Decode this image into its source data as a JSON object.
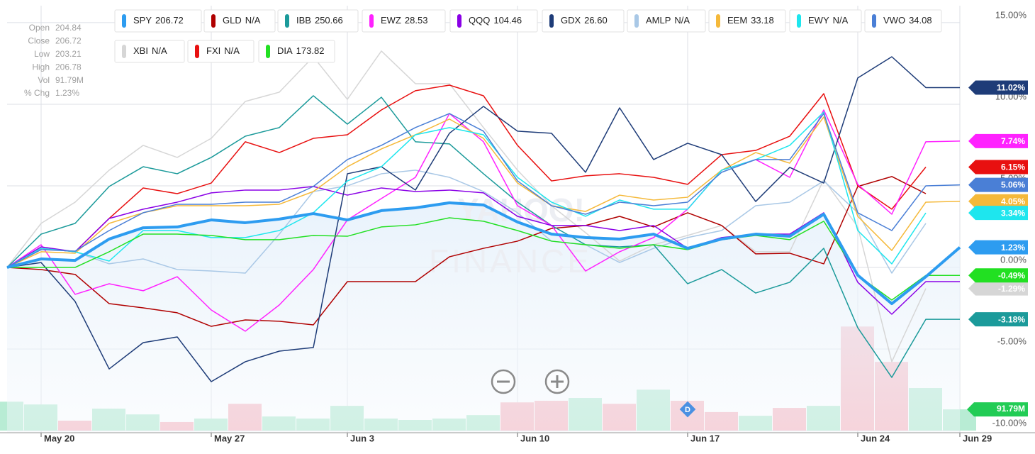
{
  "chart_data": {
    "type": "line",
    "info": [
      {
        "label": "Open",
        "value": "204.84"
      },
      {
        "label": "Close",
        "value": "206.72"
      },
      {
        "label": "Low",
        "value": "203.21"
      },
      {
        "label": "High",
        "value": "206.78"
      },
      {
        "label": "Vol",
        "value": "91.79M"
      },
      {
        "label": "% Chg",
        "value": "1.23%"
      }
    ],
    "watermark": [
      "YAHOO!",
      "FINANCE"
    ],
    "event_marker": {
      "label": "D",
      "x": 20
    },
    "x": [
      0,
      1,
      2,
      3,
      4,
      5,
      6,
      7,
      8,
      9,
      10,
      11,
      12,
      13,
      14,
      15,
      16,
      17,
      18,
      19,
      20,
      21,
      22,
      23,
      24,
      25,
      26,
      27,
      28
    ],
    "xlim": [
      0,
      28
    ],
    "xticks": [
      {
        "value": 1,
        "label": "May 20"
      },
      {
        "value": 6,
        "label": "May 27"
      },
      {
        "value": 10,
        "label": "Jun 3"
      },
      {
        "value": 15,
        "label": "Jun 10"
      },
      {
        "value": 20,
        "label": "Jun 17"
      },
      {
        "value": 25,
        "label": "Jun 24"
      },
      {
        "value": 28,
        "label": "Jun 29"
      }
    ],
    "ylim": [
      -10.13,
      16.04
    ],
    "yticks": [
      {
        "value": 15,
        "label": "15.00%"
      },
      {
        "value": 10,
        "label": "10.00%"
      },
      {
        "value": 5,
        "label": "5.00%"
      },
      {
        "value": 0,
        "label": "0.00%"
      },
      {
        "value": -5,
        "label": "-5.00%"
      },
      {
        "value": -10,
        "label": "-10.00%"
      }
    ],
    "grid": true,
    "series": [
      {
        "name": "XBI",
        "quote": "N/A",
        "color": "#d6d6d6",
        "values": [
          0,
          2.7,
          4.0,
          5.96,
          7.48,
          6.74,
          7.91,
          10.17,
          10.74,
          12.91,
          10.3,
          13.26,
          11.26,
          11.26,
          8.57,
          5.96,
          3.78,
          2.13,
          0.39,
          1.39,
          1.96,
          2.57,
          0.96,
          0.96,
          5.39,
          2.48,
          -5.78,
          -1.29,
          null
        ],
        "value_labels": [
          null,
          null,
          null,
          null,
          null,
          null,
          null,
          null,
          null,
          null,
          null,
          null,
          null,
          null,
          null,
          null,
          null,
          null,
          null,
          null,
          null,
          null,
          null,
          null,
          null,
          null,
          null,
          "-1.29%",
          null
        ]
      },
      {
        "name": "AMLP",
        "quote": "N/A",
        "color": "#a9c8e6",
        "values": [
          0,
          1.17,
          0.96,
          0.22,
          0.52,
          -0.13,
          -0.22,
          -0.35,
          2.04,
          4.65,
          5.0,
          5.74,
          5.96,
          5.52,
          4.65,
          3.35,
          1.61,
          1.39,
          0.3,
          1.17,
          1.83,
          2.26,
          3.78,
          4.0,
          5.3,
          3.35,
          -0.35,
          2.7,
          null
        ]
      },
      {
        "name": "GLD",
        "quote": "N/A",
        "color": "#b00000",
        "values": [
          0,
          -0.13,
          -0.43,
          -2.22,
          -2.48,
          -2.78,
          -3.61,
          -3.22,
          -3.3,
          -3.52,
          -0.87,
          -0.87,
          -0.87,
          0.65,
          1.17,
          1.61,
          2.39,
          2.57,
          3.13,
          2.48,
          3.35,
          2.57,
          0.83,
          0.87,
          0.22,
          4.96,
          5.57,
          4.52,
          null
        ]
      },
      {
        "name": "FXI",
        "quote": "N/A",
        "color": "#e81010",
        "values": [
          0,
          1.17,
          0.96,
          3.0,
          4.87,
          4.52,
          5.17,
          7.7,
          7.04,
          7.91,
          8.13,
          9.65,
          10.83,
          11.17,
          10.52,
          7.48,
          5.3,
          5.61,
          5.74,
          5.52,
          5.09,
          6.91,
          7.17,
          8.04,
          10.65,
          5.0,
          3.57,
          6.15,
          null
        ],
        "value_labels": [
          null,
          null,
          null,
          null,
          null,
          null,
          null,
          null,
          null,
          null,
          null,
          null,
          null,
          null,
          null,
          null,
          null,
          null,
          null,
          null,
          null,
          null,
          null,
          null,
          null,
          null,
          null,
          "6.15%",
          null
        ]
      },
      {
        "name": "IBB",
        "quote": "250.66",
        "color": "#1b9a9a",
        "values": [
          0,
          2.04,
          2.7,
          4.96,
          6.17,
          5.74,
          6.74,
          8.04,
          8.57,
          10.52,
          8.78,
          10.43,
          7.7,
          7.57,
          5.74,
          4.0,
          2.57,
          1.39,
          1.26,
          1.39,
          -1.0,
          -0.13,
          -1.57,
          -0.91,
          1.17,
          -3.7,
          -6.74,
          -3.18,
          -3.18
        ],
        "value_labels": [
          null,
          null,
          null,
          null,
          null,
          null,
          null,
          null,
          null,
          null,
          null,
          null,
          null,
          null,
          null,
          null,
          null,
          null,
          null,
          null,
          null,
          null,
          null,
          null,
          null,
          null,
          null,
          null,
          "-3.18%"
        ]
      },
      {
        "name": "EWZ",
        "quote": "28.53",
        "color": "#ff22ff",
        "values": [
          0,
          1.39,
          -1.65,
          -1.0,
          -1.43,
          -0.57,
          -2.61,
          -3.91,
          -2.3,
          -0.13,
          2.91,
          4.22,
          5.52,
          9.43,
          7.7,
          3.78,
          2.57,
          -0.22,
          0.96,
          1.83,
          3.57,
          5.96,
          6.61,
          5.52,
          9.65,
          5.09,
          3.26,
          7.7,
          7.74
        ],
        "value_labels": [
          null,
          null,
          null,
          null,
          null,
          null,
          null,
          null,
          null,
          null,
          null,
          null,
          null,
          null,
          null,
          null,
          null,
          null,
          null,
          null,
          null,
          null,
          null,
          null,
          null,
          null,
          null,
          null,
          "7.74%"
        ]
      },
      {
        "name": "QQQ",
        "quote": "104.46",
        "color": "#8a00e6",
        "values": [
          0,
          1.26,
          0.96,
          3.0,
          3.57,
          4.0,
          4.57,
          4.74,
          4.74,
          4.96,
          4.43,
          4.87,
          4.65,
          4.74,
          4.57,
          3.13,
          2.57,
          2.57,
          2.26,
          2.57,
          1.17,
          1.83,
          2.04,
          2.04,
          3.35,
          -0.91,
          -2.87,
          -0.87,
          -0.87
        ]
      },
      {
        "name": "GDX",
        "quote": "26.60",
        "color": "#1e3c78",
        "values": [
          0,
          0.3,
          -2.09,
          -6.22,
          -4.61,
          -4.26,
          -7.0,
          -5.78,
          -5.13,
          -4.91,
          5.74,
          6.17,
          4.74,
          8.22,
          9.87,
          8.35,
          8.22,
          5.83,
          9.78,
          6.61,
          7.61,
          6.91,
          4.04,
          6.13,
          5.17,
          11.61,
          12.91,
          11.02,
          11.02
        ],
        "value_labels": [
          null,
          null,
          null,
          null,
          null,
          null,
          null,
          null,
          null,
          null,
          null,
          null,
          null,
          null,
          null,
          null,
          null,
          null,
          null,
          null,
          null,
          null,
          null,
          null,
          null,
          null,
          null,
          null,
          "11.02%"
        ]
      },
      {
        "name": "EEM",
        "quote": "33.18",
        "color": "#f5b93a",
        "values": [
          0,
          0.96,
          0.87,
          2.7,
          3.35,
          3.78,
          3.78,
          3.78,
          3.87,
          4.65,
          6.17,
          7.26,
          8.13,
          9.09,
          7.91,
          5.17,
          3.78,
          3.43,
          4.43,
          4.13,
          4.3,
          5.96,
          7.04,
          6.39,
          9.22,
          3.13,
          1.04,
          4.0,
          4.05
        ],
        "value_labels": [
          null,
          null,
          null,
          null,
          null,
          null,
          null,
          null,
          null,
          null,
          null,
          null,
          null,
          null,
          null,
          null,
          null,
          null,
          null,
          null,
          null,
          null,
          null,
          null,
          null,
          null,
          null,
          null,
          "4.05%"
        ]
      },
      {
        "name": "EWY",
        "quote": "N/A",
        "color": "#1ee6ee",
        "values": [
          0,
          1.17,
          0.96,
          0.39,
          2.26,
          2.26,
          1.83,
          1.83,
          2.26,
          3.35,
          5.3,
          6.17,
          8.13,
          8.57,
          8.13,
          5.52,
          4.0,
          3.13,
          4.13,
          3.57,
          3.57,
          5.96,
          6.61,
          7.48,
          9.52,
          2.26,
          0.22,
          3.34,
          null
        ],
        "value_labels": [
          null,
          null,
          null,
          null,
          null,
          null,
          null,
          null,
          null,
          null,
          null,
          null,
          null,
          null,
          null,
          null,
          null,
          null,
          null,
          null,
          null,
          null,
          null,
          null,
          null,
          null,
          null,
          "3.34%",
          null
        ]
      },
      {
        "name": "VWO",
        "quote": "34.08",
        "color": "#4a7fd6",
        "values": [
          0,
          1.09,
          1.0,
          2.26,
          3.35,
          3.87,
          3.87,
          4.0,
          4.0,
          4.96,
          6.61,
          7.48,
          8.57,
          9.43,
          8.35,
          5.3,
          3.78,
          3.26,
          4.0,
          3.78,
          4.0,
          5.83,
          6.61,
          6.61,
          9.43,
          3.35,
          2.26,
          5.0,
          5.06
        ],
        "value_labels": [
          null,
          null,
          null,
          null,
          null,
          null,
          null,
          null,
          null,
          null,
          null,
          null,
          null,
          null,
          null,
          null,
          null,
          null,
          null,
          null,
          null,
          null,
          null,
          null,
          null,
          null,
          null,
          null,
          "5.06%"
        ]
      },
      {
        "name": "DIA",
        "quote": "173.82",
        "color": "#22e022",
        "values": [
          0,
          0,
          0,
          0.96,
          2.04,
          2.04,
          1.96,
          1.7,
          1.7,
          1.96,
          1.91,
          2.48,
          2.61,
          3.04,
          2.83,
          2.26,
          1.61,
          1.39,
          1.17,
          1.39,
          1.09,
          1.7,
          1.96,
          1.7,
          2.83,
          -0.48,
          -2.0,
          -0.49,
          -0.49
        ],
        "value_labels": [
          null,
          null,
          null,
          null,
          null,
          null,
          null,
          null,
          null,
          null,
          null,
          null,
          null,
          null,
          null,
          null,
          null,
          null,
          null,
          null,
          null,
          null,
          null,
          null,
          null,
          null,
          null,
          null,
          "-0.49%"
        ]
      },
      {
        "name": "SPY",
        "quote": "206.72",
        "color": "#2d9cf0",
        "values": [
          0,
          0.52,
          0.43,
          1.74,
          2.43,
          2.48,
          2.91,
          2.74,
          2.96,
          3.3,
          2.91,
          3.48,
          3.65,
          3.96,
          3.83,
          2.78,
          2.04,
          1.83,
          1.74,
          2.04,
          1.17,
          1.74,
          2.04,
          1.91,
          3.26,
          -0.48,
          -2.22,
          -0.57,
          1.23
        ],
        "value_labels": [
          null,
          null,
          null,
          null,
          null,
          null,
          null,
          null,
          null,
          null,
          null,
          null,
          null,
          null,
          null,
          null,
          null,
          null,
          null,
          null,
          null,
          null,
          null,
          null,
          null,
          null,
          null,
          null,
          "1.23%"
        ]
      }
    ],
    "legend_order": [
      "SPY",
      "GLD",
      "IBB",
      "EWZ",
      "QQQ",
      "GDX",
      "AMLP",
      "EEM",
      "EWY",
      "VWO",
      "XBI",
      "FXI",
      "DIA"
    ],
    "volume": {
      "lim": [
        0,
        500
      ],
      "up_color": "#b8ecd4",
      "down_color": "#f7bcc6",
      "label_color": "#22cc55",
      "values": [
        125,
        113,
        43,
        95,
        70,
        37,
        52,
        116,
        61,
        52,
        107,
        52,
        46,
        52,
        67,
        122,
        129,
        141,
        116,
        177,
        129,
        80,
        64,
        98,
        107,
        450,
        297,
        184,
        91.79
      ],
      "up": [
        true,
        true,
        false,
        true,
        true,
        false,
        true,
        false,
        true,
        true,
        true,
        true,
        true,
        true,
        true,
        false,
        false,
        true,
        false,
        true,
        false,
        false,
        true,
        false,
        true,
        false,
        false,
        true,
        true
      ],
      "value_labels": [
        null,
        null,
        null,
        null,
        null,
        null,
        null,
        null,
        null,
        null,
        null,
        null,
        null,
        null,
        null,
        null,
        null,
        null,
        null,
        null,
        null,
        null,
        null,
        null,
        null,
        null,
        null,
        null,
        "91.79M"
      ]
    }
  }
}
